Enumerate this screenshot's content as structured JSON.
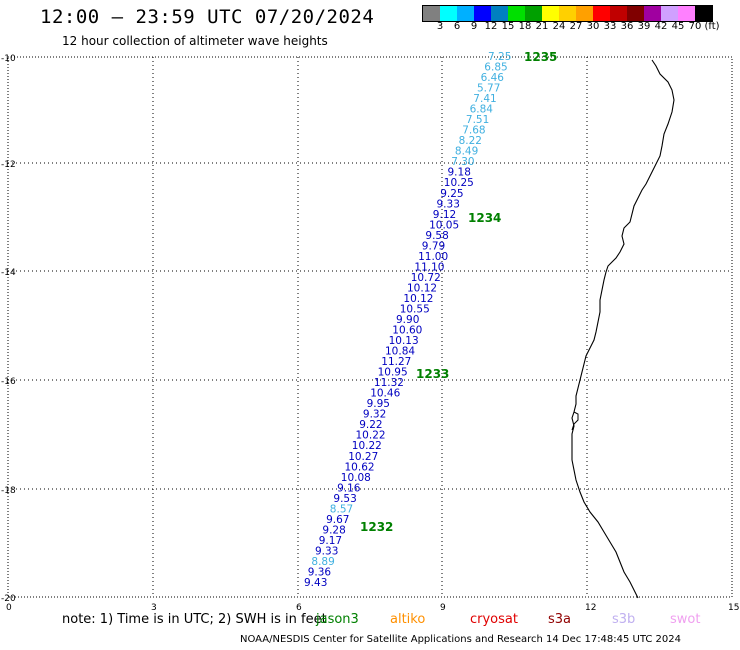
{
  "header": {
    "title": "12:00 – 23:59 UTC 07/20/2024",
    "subtitle": "12 hour collection of altimeter wave heights"
  },
  "colorbar": {
    "colors": [
      "#808080",
      "#00ffff",
      "#00b0ff",
      "#0000ff",
      "#0080c0",
      "#00e000",
      "#00a000",
      "#ffff00",
      "#ffd000",
      "#ffa000",
      "#ff0000",
      "#c00000",
      "#800000",
      "#a000a0",
      "#d0a0ff",
      "#ff80ff",
      "#000000"
    ],
    "labels": [
      "3",
      "6",
      "9",
      "12",
      "15",
      "18",
      "21",
      "24",
      "27",
      "30",
      "33",
      "36",
      "39",
      "42",
      "45",
      "70",
      "(ft)"
    ]
  },
  "axes": {
    "lat_ticks": [
      "-10",
      "-12",
      "-14",
      "-16",
      "-18",
      "-20"
    ],
    "lon_ticks": [
      "0",
      "3",
      "6",
      "9",
      "12",
      "15"
    ]
  },
  "passes": [
    "1235",
    "1234",
    "1233",
    "1232"
  ],
  "wave_heights": [
    {
      "v": "7.25",
      "c": "#40b0e0"
    },
    {
      "v": "6.85",
      "c": "#40b0e0"
    },
    {
      "v": "6.46",
      "c": "#40b0e0"
    },
    {
      "v": "5.77",
      "c": "#40b0e0"
    },
    {
      "v": "7.41",
      "c": "#40b0e0"
    },
    {
      "v": "6.84",
      "c": "#40b0e0"
    },
    {
      "v": "7.51",
      "c": "#40b0e0"
    },
    {
      "v": "7.68",
      "c": "#40b0e0"
    },
    {
      "v": "8.22",
      "c": "#40b0e0"
    },
    {
      "v": "8.49",
      "c": "#40b0e0"
    },
    {
      "v": "7.30",
      "c": "#40b0e0"
    },
    {
      "v": "9.18",
      "c": "#0000c0"
    },
    {
      "v": "10.25",
      "c": "#0000c0"
    },
    {
      "v": "9.25",
      "c": "#0000c0"
    },
    {
      "v": "9.33",
      "c": "#0000c0"
    },
    {
      "v": "9.12",
      "c": "#0000c0"
    },
    {
      "v": "10.05",
      "c": "#0000c0"
    },
    {
      "v": "9.58",
      "c": "#0000c0"
    },
    {
      "v": "9.79",
      "c": "#0000c0"
    },
    {
      "v": "11.00",
      "c": "#0000c0"
    },
    {
      "v": "11.10",
      "c": "#0000c0"
    },
    {
      "v": "10.72",
      "c": "#0000c0"
    },
    {
      "v": "10.12",
      "c": "#0000c0"
    },
    {
      "v": "10.12",
      "c": "#0000c0"
    },
    {
      "v": "10.55",
      "c": "#0000c0"
    },
    {
      "v": "9.90",
      "c": "#0000c0"
    },
    {
      "v": "10.60",
      "c": "#0000c0"
    },
    {
      "v": "10.13",
      "c": "#0000c0"
    },
    {
      "v": "10.84",
      "c": "#0000c0"
    },
    {
      "v": "11.27",
      "c": "#0000c0"
    },
    {
      "v": "10.95",
      "c": "#0000c0"
    },
    {
      "v": "11.32",
      "c": "#0000c0"
    },
    {
      "v": "10.46",
      "c": "#0000c0"
    },
    {
      "v": "9.95",
      "c": "#0000c0"
    },
    {
      "v": "9.32",
      "c": "#0000c0"
    },
    {
      "v": "9.22",
      "c": "#0000c0"
    },
    {
      "v": "10.22",
      "c": "#0000c0"
    },
    {
      "v": "10.22",
      "c": "#0000c0"
    },
    {
      "v": "10.27",
      "c": "#0000c0"
    },
    {
      "v": "10.62",
      "c": "#0000c0"
    },
    {
      "v": "10.08",
      "c": "#0000c0"
    },
    {
      "v": "9.16",
      "c": "#0000c0"
    },
    {
      "v": "9.53",
      "c": "#0000c0"
    },
    {
      "v": "8.57",
      "c": "#40b0e0"
    },
    {
      "v": "9.67",
      "c": "#0000c0"
    },
    {
      "v": "9.28",
      "c": "#0000c0"
    },
    {
      "v": "9.17",
      "c": "#0000c0"
    },
    {
      "v": "9.33",
      "c": "#0000c0"
    },
    {
      "v": "8.89",
      "c": "#40b0e0"
    },
    {
      "v": "9.36",
      "c": "#0000c0"
    },
    {
      "v": "9.43",
      "c": "#0000c0"
    }
  ],
  "note": "note: 1) Time is in UTC; 2) SWH is in feet",
  "satellites": [
    {
      "name": "jason3",
      "color": "#008000"
    },
    {
      "name": "altiko",
      "color": "#ff9000"
    },
    {
      "name": "cryosat",
      "color": "#e00000"
    },
    {
      "name": "s3a",
      "color": "#900000"
    },
    {
      "name": "s3b",
      "color": "#c0b0f0"
    },
    {
      "name": "swot",
      "color": "#f0a0f0"
    }
  ],
  "footer": "NOAA/NESDIS Center for Satellite Applications and Research    14 Dec 17:48:45 UTC 2024"
}
